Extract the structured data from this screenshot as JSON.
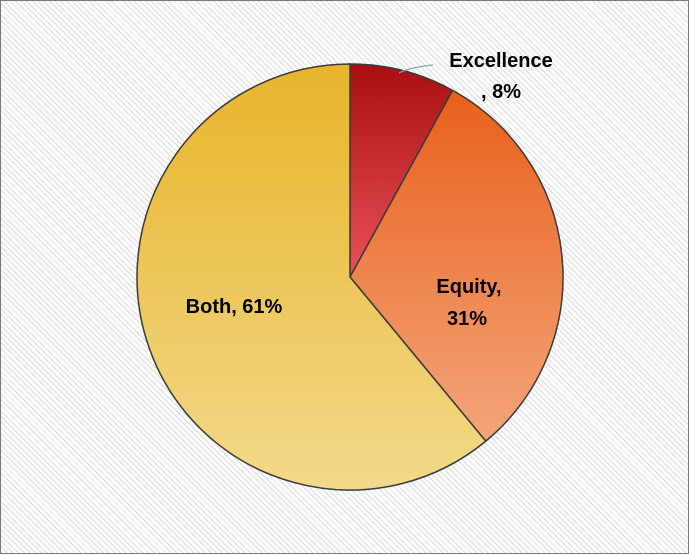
{
  "chart_data": {
    "type": "pie",
    "title": "",
    "slices": [
      {
        "label": "Excellence",
        "value": 8,
        "display": ", 8%",
        "color_start": "#a80f12",
        "color_end": "#e85256"
      },
      {
        "label": "Equity",
        "value": 31,
        "display": "31%",
        "color_start": "#e8601c",
        "color_end": "#f4a57a"
      },
      {
        "label": "Both",
        "value": 61,
        "display": "Both, 61%",
        "color_start": "#e8b42a",
        "color_end": "#f2d98a"
      }
    ],
    "legend": "none"
  },
  "labels": {
    "excellence_line1": "Excellence",
    "excellence_line2": ", 8%",
    "equity_line1": "Equity,",
    "equity_line2": "31%",
    "both": "Both, 61%"
  }
}
